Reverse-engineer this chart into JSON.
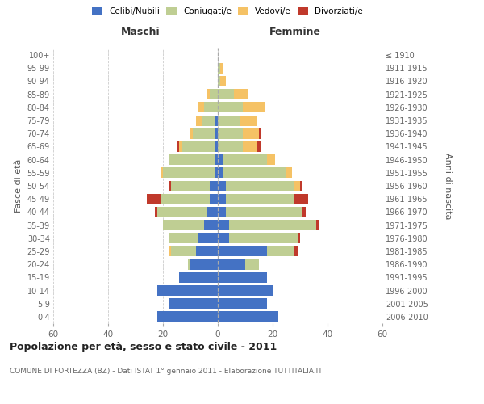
{
  "age_groups": [
    "0-4",
    "5-9",
    "10-14",
    "15-19",
    "20-24",
    "25-29",
    "30-34",
    "35-39",
    "40-44",
    "45-49",
    "50-54",
    "55-59",
    "60-64",
    "65-69",
    "70-74",
    "75-79",
    "80-84",
    "85-89",
    "90-94",
    "95-99",
    "100+"
  ],
  "birth_years": [
    "2006-2010",
    "2001-2005",
    "1996-2000",
    "1991-1995",
    "1986-1990",
    "1981-1985",
    "1976-1980",
    "1971-1975",
    "1966-1970",
    "1961-1965",
    "1956-1960",
    "1951-1955",
    "1946-1950",
    "1941-1945",
    "1936-1940",
    "1931-1935",
    "1926-1930",
    "1921-1925",
    "1916-1920",
    "1911-1915",
    "≤ 1910"
  ],
  "colors": {
    "celibi": "#4472C4",
    "coniugati": "#BFCE93",
    "vedovi": "#F5C265",
    "divorziati": "#C0392B"
  },
  "males": {
    "celibi": [
      22,
      18,
      22,
      14,
      10,
      8,
      7,
      5,
      4,
      3,
      3,
      1,
      1,
      1,
      1,
      1,
      0,
      0,
      0,
      0,
      0
    ],
    "coniugati": [
      0,
      0,
      0,
      0,
      1,
      9,
      11,
      15,
      18,
      18,
      14,
      19,
      17,
      12,
      8,
      5,
      5,
      3,
      0,
      0,
      0
    ],
    "vedovi": [
      0,
      0,
      0,
      0,
      0,
      1,
      0,
      0,
      0,
      0,
      0,
      1,
      0,
      1,
      1,
      2,
      2,
      1,
      0,
      0,
      0
    ],
    "divorziati": [
      0,
      0,
      0,
      0,
      0,
      0,
      0,
      0,
      1,
      5,
      1,
      0,
      0,
      1,
      0,
      0,
      0,
      0,
      0,
      0,
      0
    ]
  },
  "females": {
    "celibi": [
      22,
      18,
      20,
      18,
      10,
      18,
      4,
      4,
      3,
      3,
      3,
      2,
      2,
      0,
      0,
      0,
      0,
      0,
      0,
      0,
      0
    ],
    "coniugati": [
      0,
      0,
      0,
      0,
      5,
      10,
      25,
      32,
      28,
      25,
      25,
      23,
      16,
      9,
      9,
      8,
      9,
      6,
      1,
      1,
      0
    ],
    "vedovi": [
      0,
      0,
      0,
      0,
      0,
      0,
      0,
      0,
      0,
      0,
      2,
      2,
      3,
      5,
      6,
      6,
      8,
      5,
      2,
      1,
      0
    ],
    "divorziati": [
      0,
      0,
      0,
      0,
      0,
      1,
      1,
      1,
      1,
      5,
      1,
      0,
      0,
      2,
      1,
      0,
      0,
      0,
      0,
      0,
      0
    ]
  },
  "title": "Popolazione per età, sesso e stato civile - 2011",
  "subtitle": "COMUNE DI FORTEZZA (BZ) - Dati ISTAT 1° gennaio 2011 - Elaborazione TUTTITALIA.IT",
  "xlabel_left": "Maschi",
  "xlabel_right": "Femmine",
  "ylabel_left": "Fasce di età",
  "ylabel_right": "Anni di nascita",
  "xlim": 60,
  "legend_labels": [
    "Celibi/Nubili",
    "Coniugati/e",
    "Vedovi/e",
    "Divorziati/e"
  ],
  "background_color": "#ffffff",
  "grid_color": "#cccccc"
}
